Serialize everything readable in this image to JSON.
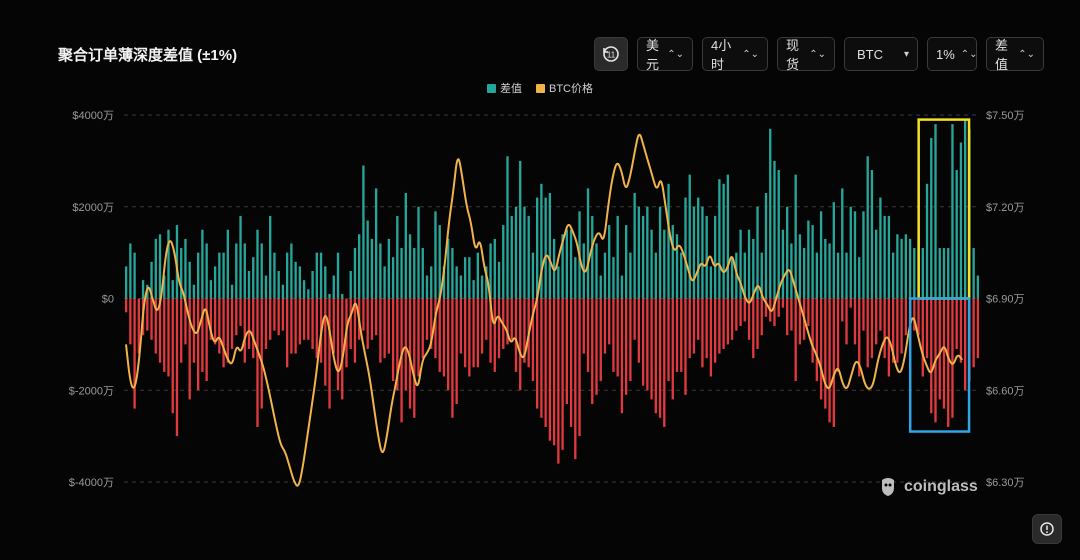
{
  "header": {
    "title": "聚合订单薄深度差值 (±1%)"
  },
  "toolbar": {
    "history_icon": "history-icon",
    "history_label": "11",
    "currency": "美元",
    "interval": "4小时",
    "market": "现货",
    "coin": "BTC",
    "depth": "1%",
    "metric": "差值"
  },
  "legend": {
    "diff_label": "差值",
    "price_label": "BTC价格"
  },
  "colors": {
    "positive": "#26a69a",
    "negative": "#e0393e",
    "price": "#f0b34a",
    "highlight_yellow": "#f5e027",
    "highlight_blue": "#2fa4e7",
    "grid": "#3a3a3a"
  },
  "watermark": {
    "text": "coinglass",
    "icon": "coinglass-logo-icon"
  },
  "settings_icon": "settings-icon",
  "chart_data": {
    "type": "bar+line",
    "left_axis": {
      "ylim": [
        -4500,
        4500
      ],
      "ticks": [
        4000,
        2000,
        0,
        -2000,
        -4000
      ],
      "tick_labels": [
        "$4000万",
        "$2000万",
        "$0",
        "$-2000万",
        "$-4000万"
      ]
    },
    "right_axis": {
      "ylim": [
        6.2,
        7.52
      ],
      "ticks": [
        7.5,
        7.2,
        6.9,
        6.6,
        6.3
      ],
      "tick_labels": [
        "$7.50万",
        "$7.20万",
        "$6.90万",
        "$6.60万",
        "$6.30万"
      ]
    },
    "grid": "horizontal-dashed",
    "legend_position": "top-center",
    "series": [
      {
        "name": "差值",
        "type": "bar",
        "positive": [
          700,
          1200,
          1000,
          0,
          400,
          300,
          800,
          1300,
          1400,
          500,
          1500,
          400,
          1600,
          1100,
          1300,
          800,
          300,
          1000,
          1500,
          1200,
          400,
          700,
          1000,
          1000,
          1500,
          300,
          1200,
          1800,
          1200,
          600,
          900,
          1500,
          1200,
          500,
          1800,
          1000,
          600,
          300,
          1000,
          1200,
          800,
          700,
          400,
          200,
          600,
          1000,
          1000,
          700,
          100,
          500,
          1000,
          100,
          0,
          600,
          1100,
          1400,
          2900,
          1700,
          1300,
          2400,
          1200,
          700,
          1300,
          900,
          1800,
          1100,
          2300,
          1400,
          1100,
          2000,
          1100,
          500,
          700,
          1900,
          1600,
          700,
          1300,
          1100,
          700,
          500,
          900,
          900,
          400,
          1000,
          500,
          700,
          1200,
          1300,
          800,
          1600,
          3100,
          1800,
          2000,
          3000,
          2000,
          1800,
          1000,
          2200,
          2500,
          2200,
          2300,
          1300,
          700,
          1400,
          1500,
          1500,
          900,
          1900,
          1200,
          2400,
          1800,
          1200,
          500,
          1000,
          1600,
          900,
          1800,
          500,
          1600,
          1000,
          2300,
          2000,
          1800,
          2000,
          1500,
          1000,
          2000,
          1500,
          2500,
          1600,
          1400,
          1000,
          2200,
          2700,
          2000,
          2200,
          2000,
          1800,
          700,
          1800,
          2600,
          2500,
          2700,
          900,
          1000,
          1500,
          1000,
          1500,
          1300,
          2000,
          1000,
          2300,
          3700,
          3000,
          2800,
          1500,
          2000,
          1200,
          2700,
          1400,
          1100,
          1700,
          1600,
          1000,
          1900,
          1300,
          1200,
          2100,
          1000,
          2400,
          1000,
          2000,
          1900,
          900,
          1900,
          3100,
          2800,
          1500,
          2200,
          1800,
          1800,
          1000,
          1400,
          1300,
          1400,
          1300,
          1100,
          1300,
          1100,
          2500,
          3500,
          3800,
          1100,
          1100,
          1100,
          3800,
          2800,
          3400,
          3900,
          3700,
          1100,
          500
        ],
        "negative": [
          -300,
          -1000,
          -2400,
          -1200,
          -800,
          -700,
          -900,
          -1200,
          -1400,
          -1600,
          -1700,
          -2500,
          -3000,
          -1400,
          -1000,
          -2200,
          -1400,
          -2000,
          -1600,
          -1800,
          -900,
          -1000,
          -1200,
          -1500,
          -1400,
          -1100,
          -800,
          -600,
          -1400,
          -1100,
          -1300,
          -2800,
          -2400,
          -1100,
          -900,
          -700,
          -800,
          -700,
          -1500,
          -1200,
          -1200,
          -1000,
          -900,
          -900,
          -1100,
          -1300,
          -1400,
          -1900,
          -2400,
          -1200,
          -2000,
          -2200,
          -1500,
          -1100,
          -1400,
          -900,
          -700,
          -1100,
          -900,
          -800,
          -1400,
          -1300,
          -1200,
          -1800,
          -2000,
          -2700,
          -2000,
          -2400,
          -2600,
          -1700,
          -1300,
          -900,
          -1100,
          -1300,
          -1600,
          -1700,
          -2000,
          -2600,
          -2300,
          -1200,
          -1500,
          -1700,
          -1500,
          -1500,
          -1200,
          -900,
          -1400,
          -1600,
          -1300,
          -1100,
          -1000,
          -900,
          -1600,
          -2000,
          -1400,
          -1500,
          -1800,
          -2400,
          -2600,
          -2800,
          -3100,
          -3200,
          -3600,
          -3300,
          -2300,
          -2800,
          -3500,
          -3000,
          -1200,
          -1600,
          -2300,
          -2100,
          -1800,
          -1200,
          -1000,
          -1600,
          -1700,
          -2500,
          -2100,
          -1800,
          -900,
          -1400,
          -1900,
          -2000,
          -2200,
          -2500,
          -2600,
          -2800,
          -1800,
          -2200,
          -1600,
          -1600,
          -2100,
          -1300,
          -1200,
          -900,
          -1500,
          -1300,
          -1700,
          -1400,
          -1200,
          -1100,
          -1000,
          -900,
          -700,
          -600,
          -500,
          -900,
          -1300,
          -1100,
          -800,
          -400,
          -500,
          -600,
          -400,
          -200,
          -800,
          -700,
          -1800,
          -1000,
          -900,
          -600,
          -1400,
          -1800,
          -2200,
          -2400,
          -2700,
          -2800,
          -1600,
          -500,
          -1000,
          -200,
          -1000,
          -1700,
          -700,
          -1500,
          -1300,
          -1000,
          -700,
          -1300,
          -1700,
          -1400,
          -1400,
          -1200,
          -800,
          -1000,
          -700,
          -800,
          -1700,
          -1300,
          -2500,
          -2700,
          -2200,
          -2400,
          -2800,
          -2600,
          -1100,
          -1400,
          -2000,
          -1800,
          -1500,
          -1300
        ]
      },
      {
        "name": "BTC价格",
        "type": "line",
        "values": [
          6.75,
          6.62,
          6.6,
          6.7,
          6.88,
          6.95,
          6.9,
          6.85,
          6.9,
          7.05,
          7.1,
          7.05,
          6.95,
          6.92,
          6.85,
          6.8,
          6.78,
          6.83,
          6.88,
          6.8,
          6.75,
          6.78,
          6.74,
          6.7,
          6.68,
          6.75,
          6.72,
          6.78,
          6.8,
          6.76,
          6.72,
          6.68,
          6.62,
          6.55,
          6.48,
          6.42,
          6.4,
          6.35,
          6.3,
          6.28,
          6.35,
          6.45,
          6.55,
          6.65,
          6.78,
          6.86,
          6.8,
          6.7,
          6.65,
          6.7,
          6.82,
          6.85,
          6.9,
          6.8,
          6.72,
          6.65,
          6.55,
          6.45,
          6.38,
          6.45,
          6.55,
          6.62,
          6.7,
          6.75,
          6.72,
          6.65,
          6.6,
          6.7,
          6.72,
          6.75,
          6.85,
          6.9,
          7.0,
          7.15,
          7.25,
          7.38,
          7.3,
          7.2,
          7.15,
          7.05,
          7.1,
          7.0,
          6.95,
          6.8,
          6.85,
          6.82,
          6.8,
          6.75,
          6.78,
          6.72,
          6.7,
          6.78,
          6.85,
          6.9,
          7.0,
          7.05,
          7.02,
          6.98,
          7.05,
          7.1,
          7.15,
          7.12,
          7.08,
          7.0,
          6.98,
          7.05,
          7.1,
          7.12,
          7.08,
          7.2,
          7.3,
          7.35,
          7.32,
          7.25,
          7.3,
          7.38,
          7.45,
          7.4,
          7.35,
          7.3,
          7.25,
          7.3,
          7.2,
          7.1,
          7.05,
          7.08,
          7.05,
          7.0,
          6.95,
          6.98,
          7.02,
          7.0,
          7.05,
          7.0,
          7.02,
          6.98,
          7.0,
          7.05,
          6.98,
          6.95,
          6.9,
          6.88,
          6.92,
          6.95,
          6.9,
          6.88,
          6.85,
          6.9,
          6.95,
          6.98,
          7.0,
          6.95,
          6.9,
          6.85,
          6.8,
          6.75,
          6.72,
          6.68,
          6.62,
          6.6,
          6.65,
          6.68,
          6.62,
          6.6,
          6.65,
          6.7,
          6.68,
          6.62,
          6.6,
          6.62,
          6.7,
          6.75,
          6.78,
          6.75,
          6.68,
          6.65,
          6.7,
          6.8,
          6.85,
          6.78,
          6.72,
          6.68,
          6.65,
          6.7,
          6.72,
          6.75,
          6.7,
          6.68,
          6.72,
          6.7
        ]
      }
    ],
    "annotations": [
      {
        "type": "box",
        "color": "yellow",
        "x_index_range": [
          188,
          197
        ],
        "y_range": [
          0,
          3900
        ]
      },
      {
        "type": "box",
        "color": "blue",
        "x_index_range": [
          186,
          197
        ],
        "y_range": [
          -2900,
          0
        ]
      }
    ]
  }
}
